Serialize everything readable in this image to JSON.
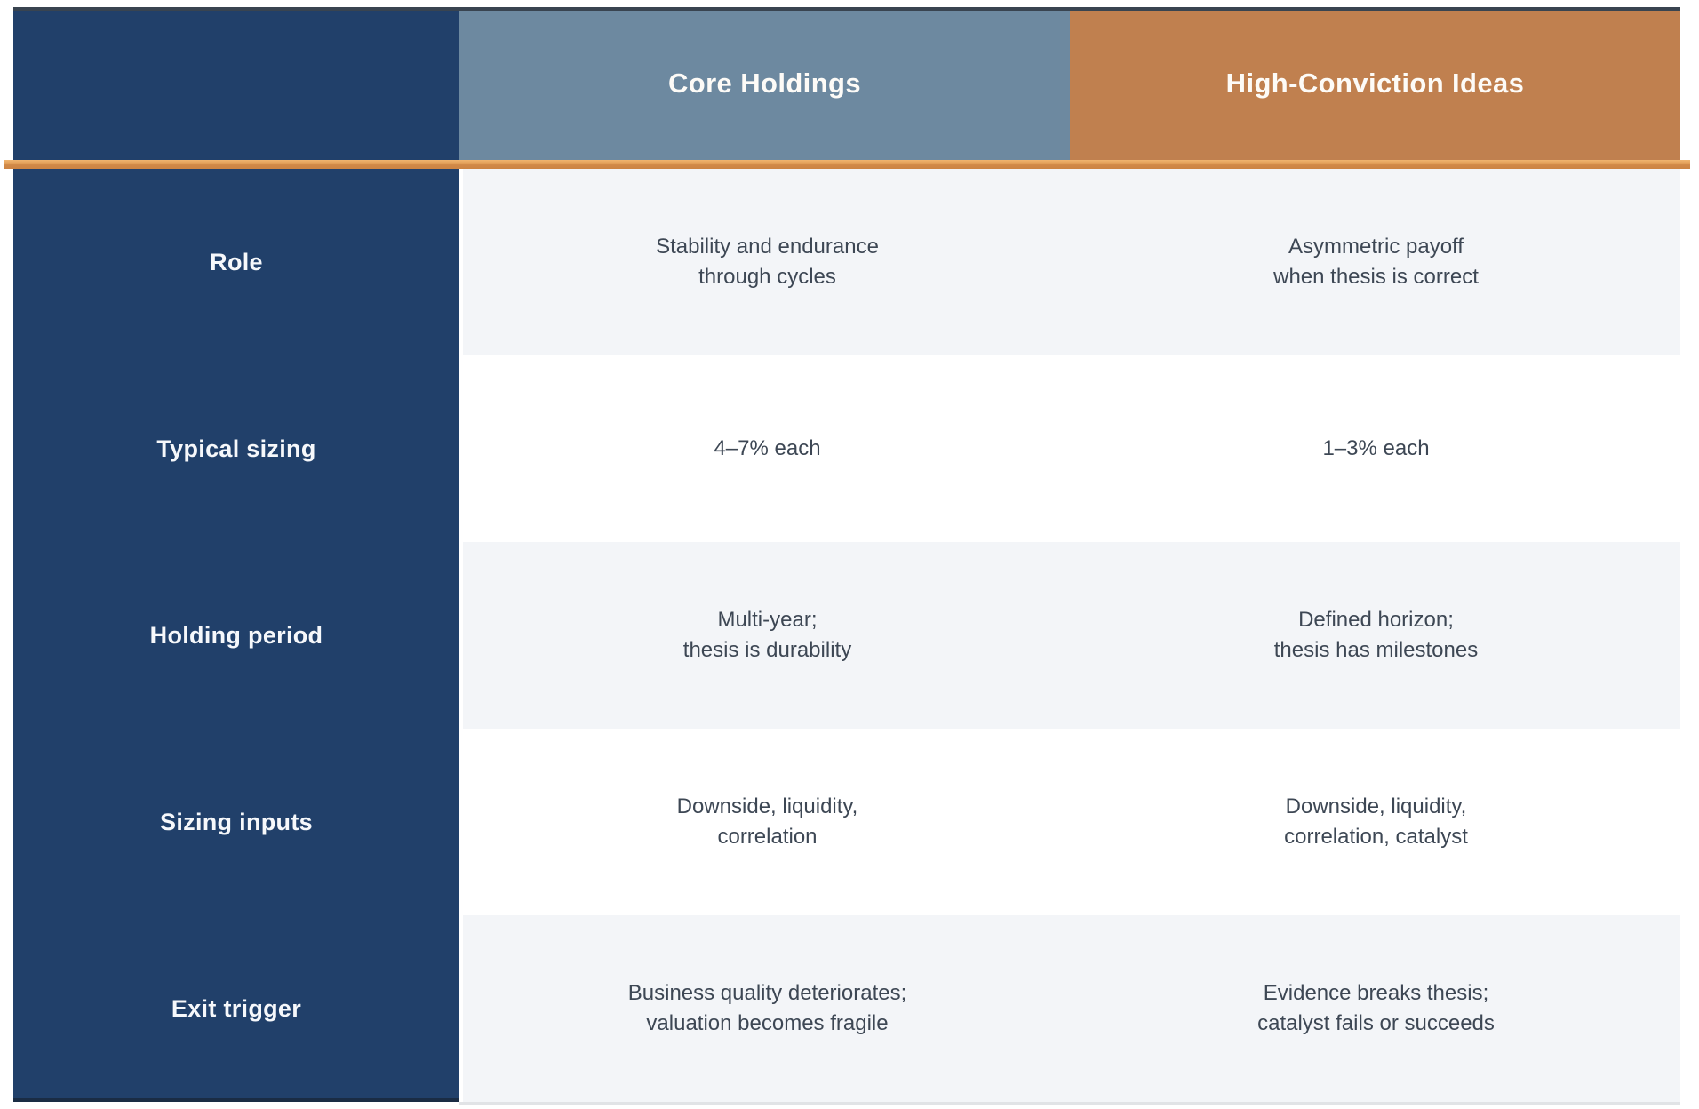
{
  "chart_data": {
    "type": "table",
    "title": "",
    "columns": [
      "Core Holdings",
      "High-Conviction Ideas"
    ],
    "rows": [
      {
        "label": "Role",
        "core_holdings": "Stability and endurance\nthrough cycles",
        "high_conviction": "Asymmetric payoff\nwhen thesis is correct"
      },
      {
        "label": "Typical sizing",
        "core_holdings": "4–7% each",
        "high_conviction": "1–3% each"
      },
      {
        "label": "Holding period",
        "core_holdings": "Multi-year;\nthesis is durability",
        "high_conviction": "Defined horizon;\nthesis has milestones"
      },
      {
        "label": "Sizing inputs",
        "core_holdings": "Downside, liquidity,\ncorrelation",
        "high_conviction": "Downside, liquidity,\ncorrelation, catalyst"
      },
      {
        "label": "Exit trigger",
        "core_holdings": "Business quality deteriorates;\nvaluation becomes fragile",
        "high_conviction": "Evidence breaks thesis;\ncatalyst fails or succeeds"
      }
    ],
    "layout": {
      "grid": "off",
      "row_striping": "alternating",
      "striped_rows": [
        0,
        2,
        4
      ]
    }
  },
  "colors": {
    "row_header_column": "#21406a",
    "column_header_core": "#6d89a0",
    "column_header_high_conviction": "#c0804f",
    "accent_divider": "#d18a48",
    "row_stripe": "#f3f5f8",
    "row_plain": "#ffffff",
    "cell_text": "#3d4754",
    "header_text": "#fdfbf7"
  }
}
